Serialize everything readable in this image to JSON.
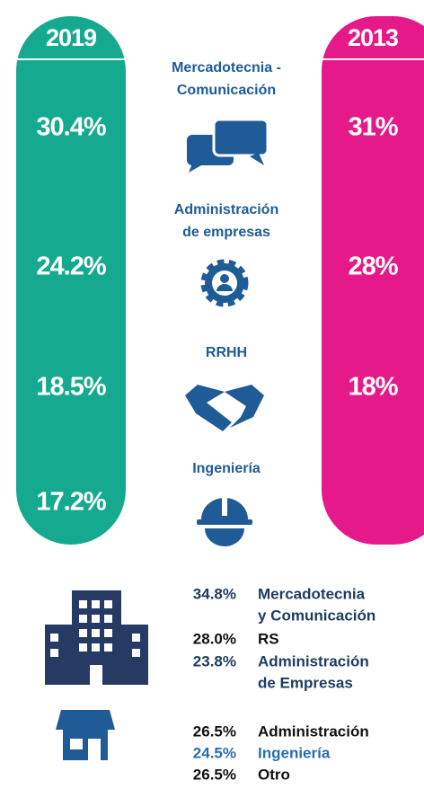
{
  "columns": [
    {
      "year": "2019",
      "values": [
        "30.4%",
        "24.2%",
        "18.5%",
        "17.2%"
      ]
    },
    {
      "year": "2013",
      "values": [
        "31%",
        "28%",
        "18%"
      ]
    }
  ],
  "categories": [
    [
      "Mercadotecnia -",
      "Comunicación"
    ],
    [
      "Administración",
      "de empresas"
    ],
    [
      "RRHH"
    ],
    [
      "Ingeniería"
    ]
  ],
  "groups": [
    {
      "rows": [
        {
          "value": "34.8%",
          "label": [
            "Mercadotecnia",
            "y Comunicación"
          ]
        },
        {
          "value": "28.0%",
          "label": [
            "RS"
          ]
        },
        {
          "value": "23.8%",
          "label": [
            "Administración",
            "de Empresas"
          ]
        }
      ]
    },
    {
      "rows": [
        {
          "value": "26.5%",
          "label": [
            "Administración"
          ]
        },
        {
          "value": "24.5%",
          "label": [
            "Ingeniería"
          ]
        },
        {
          "value": "26.5%",
          "label": [
            "Otro"
          ]
        }
      ]
    }
  ]
}
